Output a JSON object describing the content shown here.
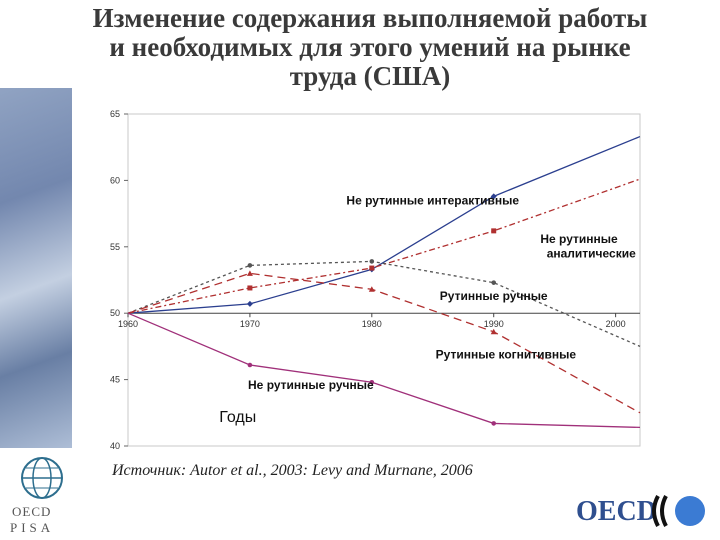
{
  "header": {
    "title_line1": "Изменение содержания выполняемой работы",
    "title_line2": "и необходимых для этого умений на рынке",
    "title_line3": "труда (США)"
  },
  "footer": {
    "source": "Источник: Autor et al., 2003: Levy and Murnane, 2006"
  },
  "logos": {
    "left_line1": "OECD",
    "left_line2": "PISA",
    "right": "OECD"
  },
  "chart_data": {
    "type": "line",
    "title": "",
    "xlabel": "Годы",
    "ylabel": "",
    "categories": [
      "1960",
      "1970",
      "1980",
      "1990",
      "2000"
    ],
    "xlim": [
      1960,
      2002
    ],
    "ylim": [
      40,
      65
    ],
    "yticks": [
      40,
      45,
      50,
      55,
      60,
      65
    ],
    "xticks": [
      1960,
      1970,
      1980,
      1990,
      2000
    ],
    "series": [
      {
        "name": "Не рутинные интерактивные",
        "color": "#2b3f8f",
        "dash": "",
        "marker": "diamond",
        "points": [
          [
            1960,
            50
          ],
          [
            1970,
            50.7
          ],
          [
            1980,
            53.3
          ],
          [
            1990,
            58.8
          ],
          [
            2002,
            63.3
          ]
        ]
      },
      {
        "name": "Не рутинные аналитические",
        "color": "#b03030",
        "dash": "6,3,2,3",
        "marker": "square",
        "points": [
          [
            1960,
            50
          ],
          [
            1970,
            51.9
          ],
          [
            1980,
            53.4
          ],
          [
            1990,
            56.2
          ],
          [
            2002,
            60.1
          ]
        ]
      },
      {
        "name": "Рутинные ручные",
        "color": "#555555",
        "dash": "3,3",
        "marker": "star",
        "points": [
          [
            1960,
            50
          ],
          [
            1970,
            53.6
          ],
          [
            1980,
            53.9
          ],
          [
            1990,
            52.3
          ],
          [
            2002,
            47.5
          ]
        ]
      },
      {
        "name": "Рутинные когнитивные",
        "color": "#b03030",
        "dash": "8,5",
        "marker": "triangle",
        "points": [
          [
            1960,
            50
          ],
          [
            1970,
            53.0
          ],
          [
            1980,
            51.8
          ],
          [
            1990,
            48.6
          ],
          [
            2002,
            42.5
          ]
        ]
      },
      {
        "name": "Не рутинные ручные",
        "color": "#a0307a",
        "dash": "",
        "marker": "dot",
        "points": [
          [
            1960,
            50
          ],
          [
            1970,
            46.1
          ],
          [
            1980,
            44.8
          ],
          [
            1990,
            41.7
          ],
          [
            2002,
            41.4
          ]
        ]
      }
    ],
    "labels": [
      {
        "text": "Не рутинные интерактивные",
        "anchor": [
          1985,
          58.2
        ]
      },
      {
        "text": "Не рутинные",
        "anchor": [
          1997,
          55.3
        ]
      },
      {
        "text": "аналитические",
        "anchor": [
          1998,
          54.2
        ]
      },
      {
        "text": "Рутинные ручные",
        "anchor": [
          1990,
          51.0
        ]
      },
      {
        "text": "Рутинные когнитивные",
        "anchor": [
          1991,
          46.6
        ]
      },
      {
        "text": "Не рутинные ручные",
        "anchor": [
          1975,
          44.3
        ]
      }
    ]
  }
}
